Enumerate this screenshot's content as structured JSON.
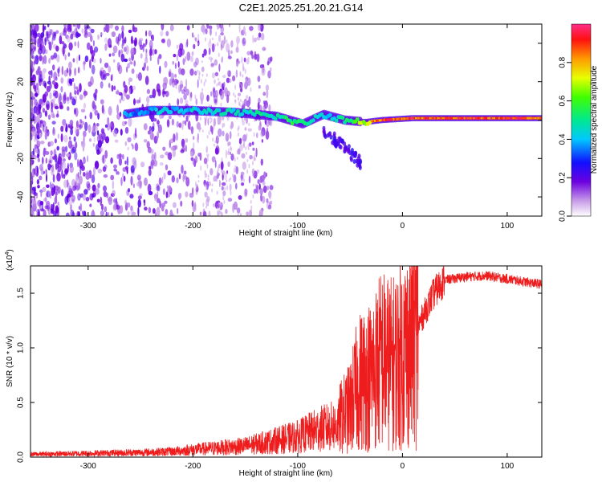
{
  "title": "C2E1.2025.251.20.21.G14",
  "colors": {
    "line": "#ee1c1c",
    "axis": "#000000",
    "background": "#ffffff"
  },
  "chart_data": [
    {
      "type": "heatmap",
      "name": "spectrogram",
      "xlabel": "Height of straight line (km)",
      "ylabel": "Frequency (Hz)",
      "xlim": [
        -355,
        133
      ],
      "ylim": [
        -50,
        50
      ],
      "xticks": [
        -300,
        -200,
        -100,
        0,
        100
      ],
      "xtick_labels": [
        "-300",
        "-200",
        "-100",
        "0",
        "100"
      ],
      "yticks": [
        -40,
        -20,
        0,
        20,
        40
      ],
      "ytick_labels": [
        "-40",
        "-20",
        "0",
        "20",
        "40"
      ],
      "colorbar": {
        "label": "Normalized spectral amplitude",
        "range": [
          0,
          1
        ],
        "ticks": [
          0.0,
          0.2,
          0.4,
          0.6,
          0.8
        ],
        "tick_labels": [
          "0.0",
          "0.2",
          "0.4",
          "0.6",
          "0.8"
        ]
      },
      "ridge": [
        {
          "x": -265,
          "freq": 3,
          "amp": 0.35
        },
        {
          "x": -240,
          "freq": 5,
          "amp": 0.38
        },
        {
          "x": -200,
          "freq": 5,
          "amp": 0.42
        },
        {
          "x": -160,
          "freq": 4,
          "amp": 0.45
        },
        {
          "x": -120,
          "freq": 2,
          "amp": 0.5
        },
        {
          "x": -95,
          "freq": -2,
          "amp": 0.55
        },
        {
          "x": -75,
          "freq": 3,
          "amp": 0.4
        },
        {
          "x": -55,
          "freq": 0,
          "amp": 0.5
        },
        {
          "x": -35,
          "freq": -1,
          "amp": 0.7
        },
        {
          "x": -20,
          "freq": 0,
          "amp": 0.9
        },
        {
          "x": 10,
          "freq": 1,
          "amp": 0.85
        },
        {
          "x": 60,
          "freq": 1,
          "amp": 0.9
        },
        {
          "x": 100,
          "freq": 1,
          "amp": 0.92
        },
        {
          "x": 133,
          "freq": 1,
          "amp": 0.88
        }
      ],
      "spur": [
        {
          "x": -75,
          "freq": -5
        },
        {
          "x": -55,
          "freq": -10
        },
        {
          "x": -40,
          "freq": -22
        }
      ]
    },
    {
      "type": "line",
      "name": "snr",
      "xlabel": "Height of straight line (km)",
      "ylabel": "SNR (10 * v/v)",
      "multiplier_label": "(x10",
      "multiplier_exp": "4",
      "multiplier_close": ")",
      "xlim": [
        -355,
        133
      ],
      "ylim": [
        0,
        1.75
      ],
      "xticks": [
        -300,
        -200,
        -100,
        0,
        100
      ],
      "xtick_labels": [
        "-300",
        "-200",
        "-100",
        "0",
        "100"
      ],
      "yticks": [
        0.0,
        0.5,
        1.0,
        1.5
      ],
      "ytick_labels": [
        "0.0",
        "0.5",
        "1.0",
        "1.5"
      ],
      "series": [
        {
          "name": "SNR",
          "x": [
            -355,
            -300,
            -250,
            -220,
            -200,
            -150,
            -120,
            -100,
            -80,
            -60,
            -50,
            -45,
            -40,
            -30,
            -20,
            -10,
            0,
            5,
            10,
            20,
            30,
            40,
            60,
            80,
            100,
            120,
            133
          ],
          "y": [
            0.03,
            0.04,
            0.05,
            0.06,
            0.08,
            0.12,
            0.18,
            0.22,
            0.3,
            0.35,
            0.45,
            0.6,
            0.7,
            0.75,
            0.9,
            0.85,
            0.95,
            1.0,
            1.1,
            1.3,
            1.5,
            1.62,
            1.65,
            1.66,
            1.63,
            1.6,
            1.58
          ]
        }
      ]
    }
  ]
}
